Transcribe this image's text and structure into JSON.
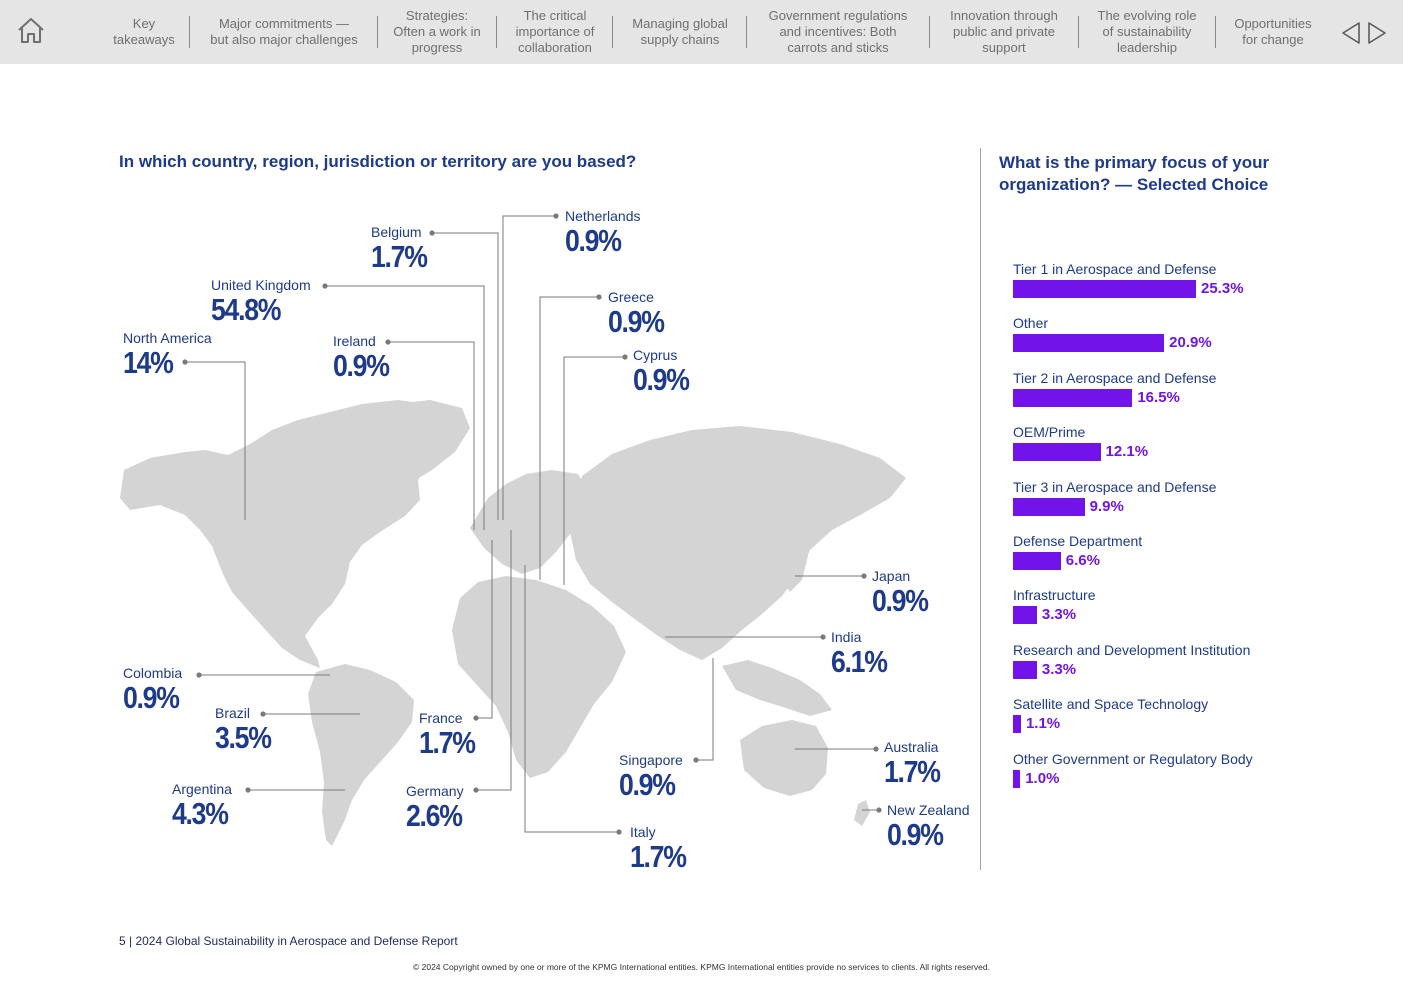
{
  "nav": {
    "items": [
      {
        "id": "key-takeaways",
        "lines": [
          "Key",
          "takeaways"
        ]
      },
      {
        "id": "major-commitments",
        "lines": [
          "Major commitments —",
          "but also major challenges"
        ]
      },
      {
        "id": "strategies",
        "lines": [
          "Strategies:",
          "Often a work in",
          "progress"
        ]
      },
      {
        "id": "collaboration",
        "lines": [
          "The critical",
          "importance of",
          "collaboration"
        ]
      },
      {
        "id": "supply-chains",
        "lines": [
          "Managing global",
          "supply chains"
        ]
      },
      {
        "id": "government-regulations",
        "lines": [
          "Government regulations",
          "and incentives: Both",
          "carrots and sticks"
        ]
      },
      {
        "id": "innovation",
        "lines": [
          "Innovation through",
          "public and private",
          "support"
        ]
      },
      {
        "id": "leadership",
        "lines": [
          "The evolving role",
          "of sustainability",
          "leadership"
        ]
      },
      {
        "id": "opportunities",
        "lines": [
          "Opportunities",
          "for change"
        ]
      }
    ]
  },
  "map_section": {
    "title": "In which country, region, jurisdiction or territory are you based?",
    "callouts": [
      {
        "id": "netherlands",
        "name": "Netherlands",
        "value": "0.9%"
      },
      {
        "id": "belgium",
        "name": "Belgium",
        "value": "1.7%"
      },
      {
        "id": "united-kingdom",
        "name": "United Kingdom",
        "value": "54.8%"
      },
      {
        "id": "greece",
        "name": "Greece",
        "value": "0.9%"
      },
      {
        "id": "north-america",
        "name": "North America",
        "value": "14%"
      },
      {
        "id": "ireland",
        "name": "Ireland",
        "value": "0.9%"
      },
      {
        "id": "cyprus",
        "name": "Cyprus",
        "value": "0.9%"
      },
      {
        "id": "japan",
        "name": "Japan",
        "value": "0.9%"
      },
      {
        "id": "india",
        "name": "India",
        "value": "6.1%"
      },
      {
        "id": "colombia",
        "name": "Colombia",
        "value": "0.9%"
      },
      {
        "id": "brazil",
        "name": "Brazil",
        "value": "3.5%"
      },
      {
        "id": "france",
        "name": "France",
        "value": "1.7%"
      },
      {
        "id": "singapore",
        "name": "Singapore",
        "value": "0.9%"
      },
      {
        "id": "australia",
        "name": "Australia",
        "value": "1.7%"
      },
      {
        "id": "argentina",
        "name": "Argentina",
        "value": "4.3%"
      },
      {
        "id": "germany",
        "name": "Germany",
        "value": "2.6%"
      },
      {
        "id": "new-zealand",
        "name": "New Zealand",
        "value": "0.9%"
      },
      {
        "id": "italy",
        "name": "Italy",
        "value": "1.7%"
      }
    ]
  },
  "focus_section": {
    "title_lines": [
      "What is the primary focus of your",
      "organization? — Selected Choice"
    ]
  },
  "chart_data": {
    "type": "bar",
    "orientation": "horizontal",
    "title": "What is the primary focus of your organization? — Selected Choice",
    "categories": [
      "Tier 1 in Aerospace and Defense",
      "Other",
      "Tier 2 in Aerospace and Defense",
      "OEM/Prime",
      "Tier 3 in Aerospace and Defense",
      "Defense Department",
      "Infrastructure",
      "Research and Development Institution",
      "Satellite and Space Technology",
      "Other Government or Regulatory Body"
    ],
    "values": [
      25.3,
      20.9,
      16.5,
      12.1,
      9.9,
      6.6,
      3.3,
      3.3,
      1.1,
      1.0
    ],
    "value_labels": [
      "25.3%",
      "20.9%",
      "16.5%",
      "12.1%",
      "9.9%",
      "6.6%",
      "3.3%",
      "3.3%",
      "1.1%",
      "1.0%"
    ],
    "unit": "%",
    "bar_color": "#7213ea",
    "grid": false,
    "legend": "none"
  },
  "footer": {
    "page_title": "5 | 2024 Global Sustainability in Aerospace and Defense Report",
    "copyright": "© 2024 Copyright owned by one or more of the KPMG International entities. KPMG International entities provide no services to clients. All rights reserved."
  },
  "colors": {
    "title_blue": "#1e3a8a",
    "bar_purple": "#7213ea",
    "map_gray": "#d4d4d5",
    "nav_bg": "#e5e5e5"
  },
  "icons": [
    "home-icon",
    "arrow-left-icon",
    "arrow-right-icon"
  ]
}
